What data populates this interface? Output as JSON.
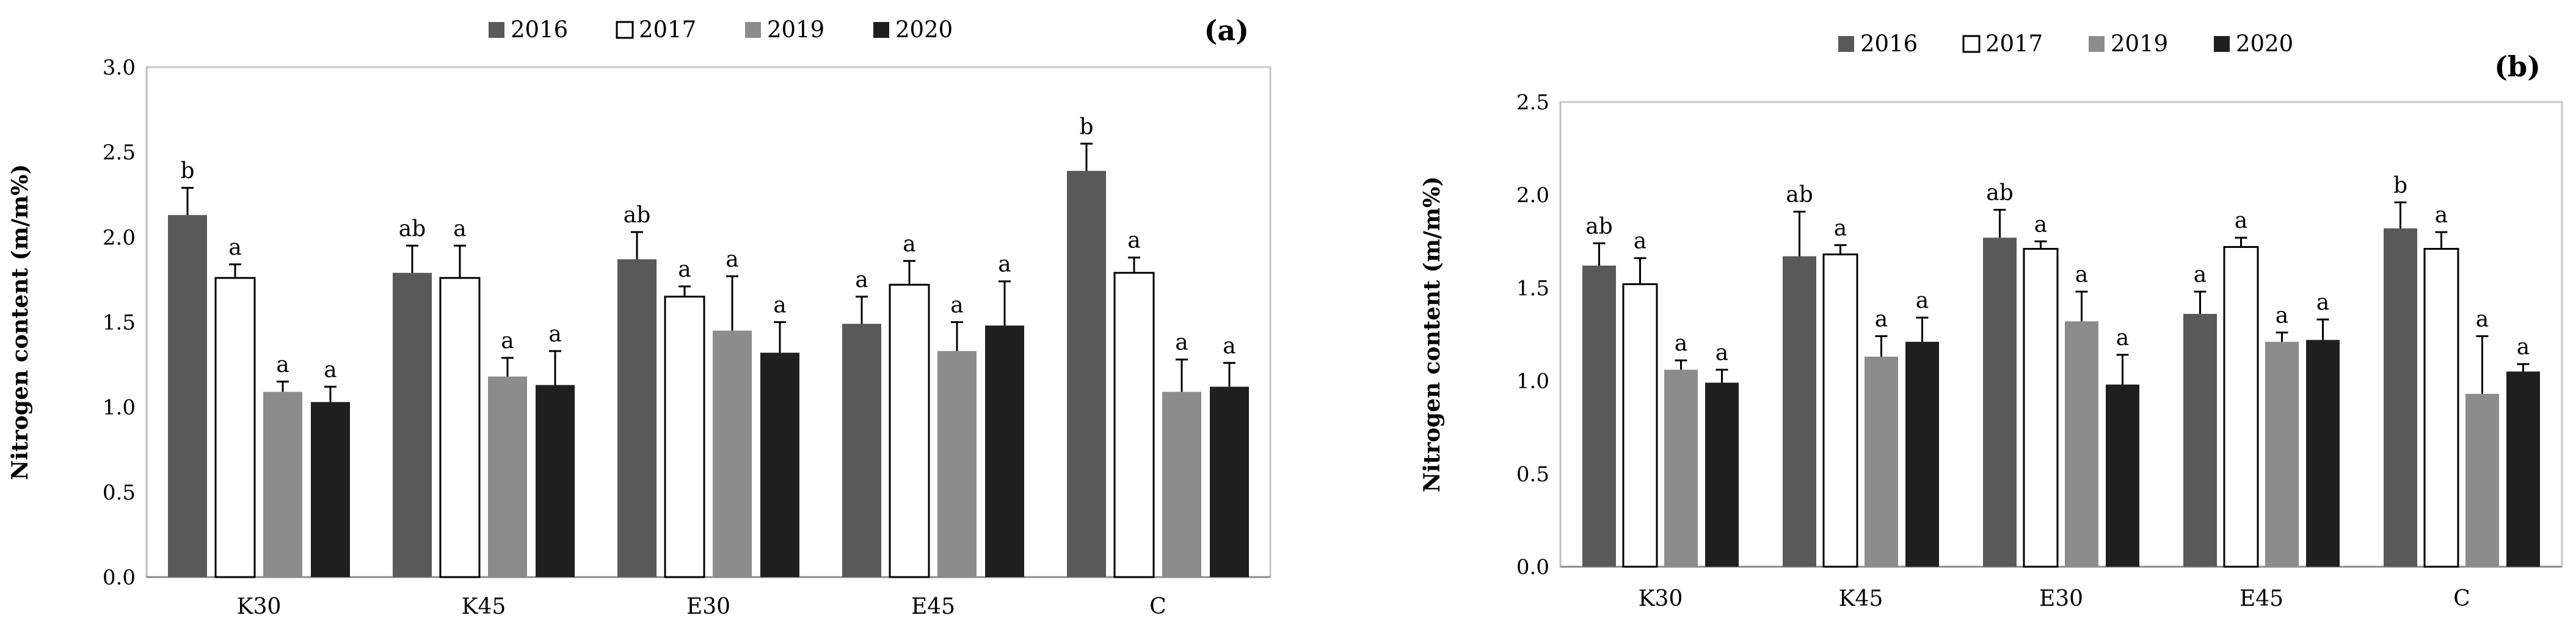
{
  "chart_data": [
    {
      "type": "bar",
      "panel_label": "(a)",
      "title": "",
      "xlabel": "",
      "ylabel": "Nitrogen content (m/m%)",
      "ylim": [
        0,
        3.0
      ],
      "yticks": [
        "0.0",
        "0.5",
        "1.0",
        "1.5",
        "2.0",
        "2.5",
        "3.0"
      ],
      "grid": false,
      "legend_position": "top-center",
      "categories": [
        "K30",
        "K45",
        "E30",
        "E45",
        "C"
      ],
      "series": [
        {
          "name": "2016",
          "color": "#595959",
          "values": [
            2.13,
            1.79,
            1.87,
            1.49,
            2.39
          ],
          "errors": [
            0.16,
            0.16,
            0.16,
            0.16,
            0.16
          ],
          "labels": [
            "b",
            "ab",
            "ab",
            "a",
            "b"
          ]
        },
        {
          "name": "2017",
          "color": "#ffffff",
          "values": [
            1.76,
            1.76,
            1.65,
            1.72,
            1.79
          ],
          "errors": [
            0.08,
            0.19,
            0.06,
            0.14,
            0.09
          ],
          "labels": [
            "a",
            "a",
            "a",
            "a",
            "a"
          ]
        },
        {
          "name": "2019",
          "color": "#8c8c8c",
          "values": [
            1.09,
            1.18,
            1.45,
            1.33,
            1.09
          ],
          "errors": [
            0.06,
            0.11,
            0.32,
            0.17,
            0.19
          ],
          "labels": [
            "a",
            "a",
            "a",
            "a",
            "a"
          ]
        },
        {
          "name": "2020",
          "color": "#1f1f1f",
          "values": [
            1.03,
            1.13,
            1.32,
            1.48,
            1.12
          ],
          "errors": [
            0.09,
            0.2,
            0.18,
            0.26,
            0.14
          ],
          "labels": [
            "a",
            "a",
            "a",
            "a",
            "a"
          ]
        }
      ]
    },
    {
      "type": "bar",
      "panel_label": "(b)",
      "title": "",
      "xlabel": "",
      "ylabel": "Nitrogen content (m/m%)",
      "ylim": [
        0,
        2.5
      ],
      "yticks": [
        "0.0",
        "0.5",
        "1.0",
        "1.5",
        "2.0",
        "2.5"
      ],
      "grid": false,
      "legend_position": "top-center",
      "categories": [
        "K30",
        "K45",
        "E30",
        "E45",
        "C"
      ],
      "series": [
        {
          "name": "2016",
          "color": "#595959",
          "values": [
            1.62,
            1.67,
            1.77,
            1.36,
            1.82
          ],
          "errors": [
            0.12,
            0.24,
            0.15,
            0.12,
            0.14
          ],
          "labels": [
            "ab",
            "ab",
            "ab",
            "a",
            "b"
          ]
        },
        {
          "name": "2017",
          "color": "#ffffff",
          "values": [
            1.52,
            1.68,
            1.71,
            1.72,
            1.71
          ],
          "errors": [
            0.14,
            0.05,
            0.04,
            0.05,
            0.09
          ],
          "labels": [
            "a",
            "a",
            "a",
            "a",
            "a"
          ]
        },
        {
          "name": "2019",
          "color": "#8c8c8c",
          "values": [
            1.06,
            1.13,
            1.32,
            1.21,
            0.93
          ],
          "errors": [
            0.05,
            0.11,
            0.16,
            0.05,
            0.31
          ],
          "labels": [
            "a",
            "a",
            "a",
            "a",
            "a"
          ]
        },
        {
          "name": "2020",
          "color": "#1f1f1f",
          "values": [
            0.99,
            1.21,
            0.98,
            1.22,
            1.05
          ],
          "errors": [
            0.07,
            0.13,
            0.16,
            0.11,
            0.04
          ],
          "labels": [
            "a",
            "a",
            "a",
            "a",
            "a"
          ]
        }
      ]
    }
  ]
}
